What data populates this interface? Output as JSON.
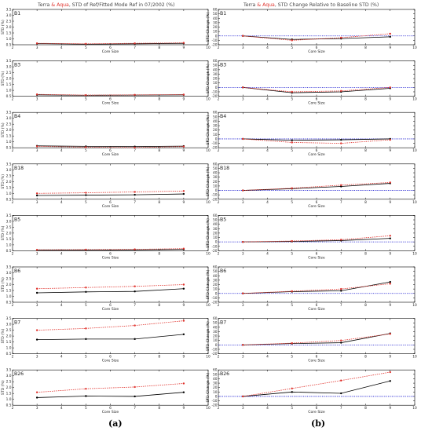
{
  "figure": {
    "left_title": {
      "terra": "Terra",
      "amp": "&",
      "aqua": "Aqua",
      "rest": ", STD of Ref/Fitted Mode Ref in 07/2002 (%)"
    },
    "right_title": {
      "terra": "Terra",
      "amp": "&",
      "aqua": "Aqua",
      "rest": ",  STD Change Relative to Baseline STD (%)"
    },
    "caption_left": "(a)",
    "caption_right": "(b)",
    "colors": {
      "terra": "#000000",
      "aqua": "#e0322c",
      "baseline": "#1a1ad0",
      "axis": "#000000"
    }
  },
  "chart_data": [
    {
      "type": "line",
      "panel": "left",
      "band": "B1",
      "xlabel": "Core Size",
      "ylabel": "STD (%)",
      "xlim": [
        2,
        10
      ],
      "ylim": [
        0.5,
        3.5
      ],
      "xticks": [
        "2",
        "3",
        "4",
        "5",
        "6",
        "7",
        "8",
        "9",
        "10"
      ],
      "yticks": [
        "0.5",
        "1.0",
        "1.5",
        "2.0",
        "2.5",
        "3.0",
        "3.5"
      ],
      "x": [
        3,
        5,
        7,
        9
      ],
      "series": [
        {
          "color": "black",
          "values": [
            0.6,
            0.55,
            0.58,
            0.62
          ]
        },
        {
          "color": "red",
          "values": [
            0.62,
            0.58,
            0.62,
            0.66
          ]
        }
      ]
    },
    {
      "type": "line",
      "panel": "right",
      "band": "B1",
      "xlabel": "Core Size",
      "ylabel": "STD Change (%)",
      "xlim": [
        2,
        10
      ],
      "ylim": [
        -20,
        60
      ],
      "xticks": [
        "2",
        "3",
        "4",
        "5",
        "6",
        "7",
        "8",
        "9",
        "10"
      ],
      "yticks": [
        "-20",
        "-10",
        "0",
        "10",
        "20",
        "30",
        "40",
        "50",
        "60"
      ],
      "x": [
        3,
        5,
        7,
        9
      ],
      "series": [
        {
          "color": "black",
          "values": [
            0,
            -8,
            -6,
            -2
          ]
        },
        {
          "color": "red",
          "values": [
            0,
            -10,
            -4,
            5
          ]
        }
      ]
    },
    {
      "type": "line",
      "panel": "left",
      "band": "B3",
      "xlabel": "Core Size",
      "ylabel": "STD (%)",
      "xlim": [
        2,
        10
      ],
      "ylim": [
        0.5,
        3.5
      ],
      "xticks": [
        "2",
        "3",
        "4",
        "5",
        "6",
        "7",
        "8",
        "9",
        "10"
      ],
      "yticks": [
        "0.5",
        "1.0",
        "1.5",
        "2.0",
        "2.5",
        "3.0",
        "3.5"
      ],
      "x": [
        3,
        5,
        7,
        9
      ],
      "series": [
        {
          "color": "black",
          "values": [
            0.62,
            0.58,
            0.6,
            0.62
          ]
        },
        {
          "color": "red",
          "values": [
            0.66,
            0.6,
            0.62,
            0.64
          ]
        }
      ]
    },
    {
      "type": "line",
      "panel": "right",
      "band": "B3",
      "xlabel": "Core Size",
      "ylabel": "STD Change (%)",
      "xlim": [
        2,
        10
      ],
      "ylim": [
        -20,
        60
      ],
      "xticks": [
        "2",
        "3",
        "4",
        "5",
        "6",
        "7",
        "8",
        "9",
        "10"
      ],
      "yticks": [
        "-20",
        "-10",
        "0",
        "10",
        "20",
        "30",
        "40",
        "50",
        "60"
      ],
      "x": [
        3,
        5,
        7,
        9
      ],
      "series": [
        {
          "color": "black",
          "values": [
            0,
            -12,
            -10,
            -2
          ]
        },
        {
          "color": "red",
          "values": [
            0,
            -10,
            -8,
            0
          ]
        }
      ]
    },
    {
      "type": "line",
      "panel": "left",
      "band": "B4",
      "xlabel": "Core Size",
      "ylabel": "STD (%)",
      "xlim": [
        2,
        10
      ],
      "ylim": [
        0.5,
        3.5
      ],
      "xticks": [
        "2",
        "3",
        "4",
        "5",
        "6",
        "7",
        "8",
        "9",
        "10"
      ],
      "yticks": [
        "0.5",
        "1.0",
        "1.5",
        "2.0",
        "2.5",
        "3.0",
        "3.5"
      ],
      "x": [
        3,
        5,
        7,
        9
      ],
      "series": [
        {
          "color": "black",
          "values": [
            0.66,
            0.62,
            0.6,
            0.64
          ]
        },
        {
          "color": "red",
          "values": [
            0.62,
            0.55,
            0.52,
            0.6
          ]
        }
      ]
    },
    {
      "type": "line",
      "panel": "right",
      "band": "B4",
      "xlabel": "Core Size",
      "ylabel": "STD Change (%)",
      "xlim": [
        2,
        10
      ],
      "ylim": [
        -20,
        60
      ],
      "xticks": [
        "2",
        "3",
        "4",
        "5",
        "6",
        "7",
        "8",
        "9",
        "10"
      ],
      "yticks": [
        "-20",
        "-10",
        "0",
        "10",
        "20",
        "30",
        "40",
        "50",
        "60"
      ],
      "x": [
        3,
        5,
        7,
        9
      ],
      "series": [
        {
          "color": "black",
          "values": [
            0,
            -3,
            -2,
            0
          ]
        },
        {
          "color": "red",
          "values": [
            0,
            -8,
            -10,
            -2
          ]
        }
      ]
    },
    {
      "type": "line",
      "panel": "left",
      "band": "B18",
      "xlabel": "Core Size",
      "ylabel": "STD (%)",
      "xlim": [
        2,
        10
      ],
      "ylim": [
        0.5,
        3.5
      ],
      "xticks": [
        "2",
        "3",
        "4",
        "5",
        "6",
        "7",
        "8",
        "9",
        "10"
      ],
      "yticks": [
        "0.5",
        "1.0",
        "1.5",
        "2.0",
        "2.5",
        "3.0",
        "3.5"
      ],
      "x": [
        3,
        5,
        7,
        9
      ],
      "series": [
        {
          "color": "black",
          "values": [
            0.82,
            0.85,
            0.88,
            0.95
          ]
        },
        {
          "color": "red",
          "values": [
            1.0,
            1.05,
            1.12,
            1.2
          ]
        }
      ]
    },
    {
      "type": "line",
      "panel": "right",
      "band": "B18",
      "xlabel": "Core Size",
      "ylabel": "STD Change (%)",
      "xlim": [
        2,
        10
      ],
      "ylim": [
        -20,
        60
      ],
      "xticks": [
        "2",
        "3",
        "4",
        "5",
        "6",
        "7",
        "8",
        "9",
        "10"
      ],
      "yticks": [
        "-20",
        "-10",
        "0",
        "10",
        "20",
        "30",
        "40",
        "50",
        "60"
      ],
      "x": [
        3,
        5,
        7,
        9
      ],
      "series": [
        {
          "color": "black",
          "values": [
            0,
            4,
            9,
            16
          ]
        },
        {
          "color": "red",
          "values": [
            0,
            5,
            12,
            18
          ]
        }
      ]
    },
    {
      "type": "line",
      "panel": "left",
      "band": "B5",
      "xlabel": "Core Size",
      "ylabel": "STD (%)",
      "xlim": [
        2,
        10
      ],
      "ylim": [
        0.5,
        3.5
      ],
      "xticks": [
        "2",
        "3",
        "4",
        "5",
        "6",
        "7",
        "8",
        "9",
        "10"
      ],
      "yticks": [
        "0.5",
        "1.0",
        "1.5",
        "2.0",
        "2.5",
        "3.0",
        "3.5"
      ],
      "x": [
        3,
        5,
        7,
        9
      ],
      "series": [
        {
          "color": "black",
          "values": [
            0.55,
            0.55,
            0.58,
            0.62
          ]
        },
        {
          "color": "red",
          "values": [
            0.58,
            0.6,
            0.62,
            0.68
          ]
        }
      ]
    },
    {
      "type": "line",
      "panel": "right",
      "band": "B5",
      "xlabel": "Core Size",
      "ylabel": "STD Change (%)",
      "xlim": [
        2,
        10
      ],
      "ylim": [
        -20,
        60
      ],
      "xticks": [
        "2",
        "3",
        "4",
        "5",
        "6",
        "7",
        "8",
        "9",
        "10"
      ],
      "yticks": [
        "-20",
        "-10",
        "0",
        "10",
        "20",
        "30",
        "40",
        "50",
        "60"
      ],
      "x": [
        3,
        5,
        7,
        9
      ],
      "series": [
        {
          "color": "black",
          "values": [
            0,
            1,
            3,
            8
          ]
        },
        {
          "color": "red",
          "values": [
            0,
            2,
            5,
            14
          ]
        }
      ]
    },
    {
      "type": "line",
      "panel": "left",
      "band": "B6",
      "xlabel": "Core Size",
      "ylabel": "STD (%)",
      "xlim": [
        2,
        10
      ],
      "ylim": [
        0.5,
        3.5
      ],
      "xticks": [
        "2",
        "3",
        "4",
        "5",
        "6",
        "7",
        "8",
        "9",
        "10"
      ],
      "yticks": [
        "0.5",
        "1.0",
        "1.5",
        "2.0",
        "2.5",
        "3.0",
        "3.5"
      ],
      "x": [
        3,
        5,
        7,
        9
      ],
      "series": [
        {
          "color": "black",
          "values": [
            1.3,
            1.38,
            1.42,
            1.65
          ]
        },
        {
          "color": "red",
          "values": [
            1.65,
            1.75,
            1.85,
            2.0
          ]
        }
      ]
    },
    {
      "type": "line",
      "panel": "right",
      "band": "B6",
      "xlabel": "Core Size",
      "ylabel": "STD Change (%)",
      "xlim": [
        2,
        10
      ],
      "ylim": [
        -20,
        60
      ],
      "xticks": [
        "2",
        "3",
        "4",
        "5",
        "6",
        "7",
        "8",
        "9",
        "10"
      ],
      "yticks": [
        "-20",
        "-10",
        "0",
        "10",
        "20",
        "30",
        "40",
        "50",
        "60"
      ],
      "x": [
        3,
        5,
        7,
        9
      ],
      "series": [
        {
          "color": "black",
          "values": [
            0,
            4,
            6,
            26
          ]
        },
        {
          "color": "red",
          "values": [
            0,
            5,
            10,
            22
          ]
        }
      ]
    },
    {
      "type": "line",
      "panel": "left",
      "band": "B7",
      "xlabel": "Core Size",
      "ylabel": "STD (%)",
      "xlim": [
        2,
        10
      ],
      "ylim": [
        0.5,
        3.5
      ],
      "xticks": [
        "2",
        "3",
        "4",
        "5",
        "6",
        "7",
        "8",
        "9",
        "10"
      ],
      "yticks": [
        "0.5",
        "1.0",
        "1.5",
        "2.0",
        "2.5",
        "3.0",
        "3.5"
      ],
      "x": [
        3,
        5,
        7,
        9
      ],
      "series": [
        {
          "color": "black",
          "values": [
            1.7,
            1.75,
            1.75,
            2.15
          ]
        },
        {
          "color": "red",
          "values": [
            2.5,
            2.65,
            2.9,
            3.3
          ]
        }
      ]
    },
    {
      "type": "line",
      "panel": "right",
      "band": "B7",
      "xlabel": "Core Size",
      "ylabel": "STD Change (%)",
      "xlim": [
        2,
        10
      ],
      "ylim": [
        -20,
        60
      ],
      "xticks": [
        "2",
        "3",
        "4",
        "5",
        "6",
        "7",
        "8",
        "9",
        "10"
      ],
      "yticks": [
        "-20",
        "-10",
        "0",
        "10",
        "20",
        "30",
        "40",
        "50",
        "60"
      ],
      "x": [
        3,
        5,
        7,
        9
      ],
      "series": [
        {
          "color": "black",
          "values": [
            0,
            3,
            5,
            26
          ]
        },
        {
          "color": "red",
          "values": [
            0,
            4,
            10,
            25
          ]
        }
      ]
    },
    {
      "type": "line",
      "panel": "left",
      "band": "B26",
      "xlabel": "Core Size",
      "ylabel": "STD (%)",
      "xlim": [
        2,
        10
      ],
      "ylim": [
        0.5,
        3.5
      ],
      "xticks": [
        "2",
        "3",
        "4",
        "5",
        "6",
        "7",
        "8",
        "9",
        "10"
      ],
      "yticks": [
        "0.5",
        "1.0",
        "1.5",
        "2.0",
        "2.5",
        "3.0",
        "3.5"
      ],
      "x": [
        3,
        5,
        7,
        9
      ],
      "series": [
        {
          "color": "black",
          "values": [
            1.15,
            1.28,
            1.25,
            1.6
          ]
        },
        {
          "color": "red",
          "values": [
            1.6,
            1.9,
            2.05,
            2.35
          ]
        }
      ]
    },
    {
      "type": "line",
      "panel": "right",
      "band": "B26",
      "xlabel": "Core Size",
      "ylabel": "STD Change (%)",
      "xlim": [
        2,
        10
      ],
      "ylim": [
        -20,
        60
      ],
      "xticks": [
        "2",
        "3",
        "4",
        "5",
        "6",
        "7",
        "8",
        "9",
        "10"
      ],
      "yticks": [
        "-20",
        "-10",
        "0",
        "10",
        "20",
        "30",
        "40",
        "50",
        "60"
      ],
      "x": [
        3,
        5,
        7,
        9
      ],
      "series": [
        {
          "color": "black",
          "values": [
            0,
            10,
            7,
            35
          ]
        },
        {
          "color": "red",
          "values": [
            0,
            18,
            36,
            55
          ]
        }
      ]
    }
  ]
}
